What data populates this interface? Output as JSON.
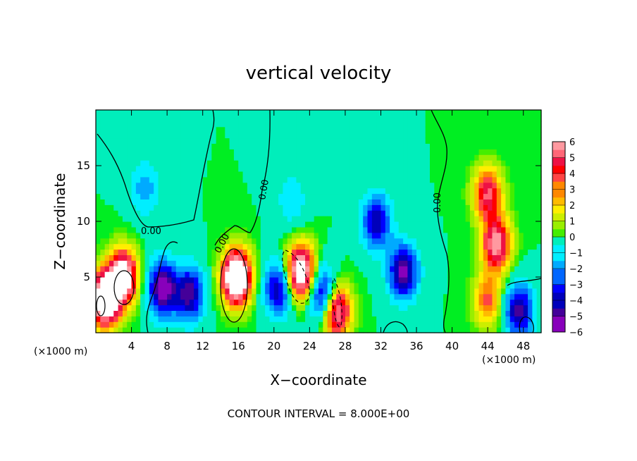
{
  "chart_data": {
    "type": "heatmap",
    "title": "vertical velocity",
    "xlabel": "X−coordinate",
    "ylabel": "Z−coordinate",
    "x_unit_left": "(×1000 m)",
    "x_unit_right": "(×1000 m)",
    "footer": "CONTOUR INTERVAL = 8.000E+00",
    "xlim": [
      0,
      50
    ],
    "ylim": [
      0,
      20
    ],
    "x_ticks": [
      4,
      8,
      12,
      16,
      20,
      24,
      28,
      32,
      36,
      40,
      44,
      48
    ],
    "x_tick_labels": [
      "4",
      "8",
      "12",
      "16",
      "20",
      "24",
      "28",
      "32",
      "36",
      "40",
      "44",
      "48"
    ],
    "y_ticks": [
      5,
      10,
      15
    ],
    "y_tick_labels": [
      "5",
      "10",
      "15"
    ],
    "colorbar": {
      "min": -6,
      "max": 6,
      "ticks": [
        6,
        5,
        4,
        3,
        2,
        1,
        0,
        -1,
        -2,
        -3,
        -4,
        -5,
        -6
      ],
      "tick_labels": [
        "6",
        "5",
        "4",
        "3",
        "2",
        "1",
        "0",
        "−1",
        "−2",
        "−3",
        "−4",
        "−5",
        "−6"
      ]
    },
    "contour_labels": [
      "0.00",
      "0.00",
      "0.00",
      "0.00"
    ],
    "colors": {
      "background": "#00ee22",
      "pos": [
        "#44ee00",
        "#99ee00",
        "#ccee00",
        "#ffee00",
        "#ffbb00",
        "#ff8800",
        "#ff4444",
        "#ff0000",
        "#ee1144",
        "#ff6677",
        "#ff99a0"
      ],
      "neg": [
        "#00eebb",
        "#00eeff",
        "#00aaff",
        "#0066ff",
        "#0000ff",
        "#0000bb",
        "#440099",
        "#8800bb"
      ],
      "overflow": "#ffffff"
    },
    "features": [
      {
        "x": 1.0,
        "z": 3.0,
        "w": 9.0
      },
      {
        "x": 3.0,
        "z": 5.0,
        "w": 8.0
      },
      {
        "x": 15.8,
        "z": 5.0,
        "w": 9.5
      },
      {
        "x": 23.0,
        "z": 5.5,
        "w": 8.0
      },
      {
        "x": 27.0,
        "z": 2.0,
        "w": 6.5
      },
      {
        "x": 44.0,
        "z": 12.5,
        "w": 5.0
      },
      {
        "x": 45.0,
        "z": 8.0,
        "w": 6.0
      },
      {
        "x": 44.0,
        "z": 3.0,
        "w": 3.5
      },
      {
        "x": 7.5,
        "z": 4.0,
        "w": -6.0
      },
      {
        "x": 10.5,
        "z": 3.5,
        "w": -5.0
      },
      {
        "x": 20.5,
        "z": 4.0,
        "w": -4.5
      },
      {
        "x": 25.5,
        "z": 3.5,
        "w": -5.0
      },
      {
        "x": 31.5,
        "z": 10.0,
        "w": -4.5
      },
      {
        "x": 34.5,
        "z": 5.5,
        "w": -5.5
      },
      {
        "x": 47.5,
        "z": 2.0,
        "w": -5.0
      },
      {
        "x": 5.5,
        "z": 13.0,
        "w": -2.0
      },
      {
        "x": 22.0,
        "z": 12.0,
        "w": -1.5
      }
    ]
  }
}
